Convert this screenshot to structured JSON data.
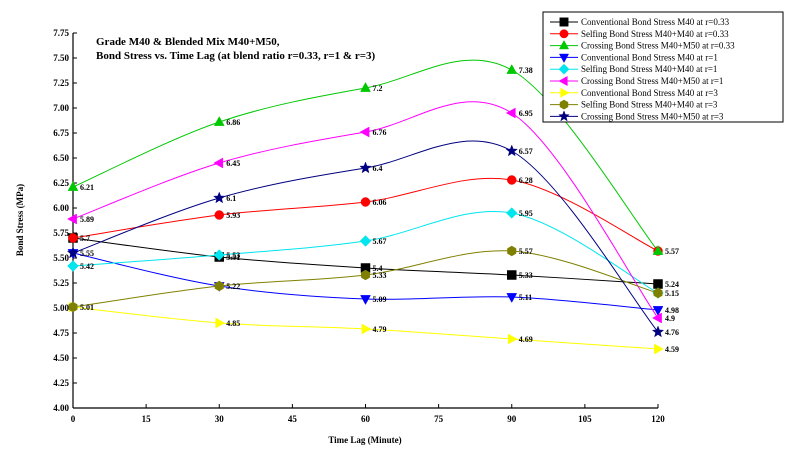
{
  "chart_data": {
    "type": "line",
    "title_lines": [
      "Grade M40 & Blended Mix M40+M50,",
      "Bond Stress vs. Time Lag (at blend ratio r=0.33, r=1 & r=3)"
    ],
    "xlabel": "Time Lag (Minute)",
    "ylabel": "Bond Stress (MPa)",
    "xlim": [
      0,
      120
    ],
    "ylim": [
      4.0,
      7.75
    ],
    "xticks": [
      "0",
      "15",
      "30",
      "45",
      "60",
      "75",
      "90",
      "105",
      "120"
    ],
    "yticks": [
      "4.00",
      "4.25",
      "4.50",
      "4.75",
      "5.00",
      "5.25",
      "5.50",
      "5.75",
      "6.00",
      "6.25",
      "6.50",
      "6.75",
      "7.00",
      "7.25",
      "7.50",
      "7.75"
    ],
    "x": [
      0,
      30,
      60,
      90,
      120
    ],
    "legend_position": "top-right",
    "grid": false,
    "series": [
      {
        "name": "Conventional Bond Stress  M40 at r=0.33",
        "values": [
          5.7,
          5.51,
          5.4,
          5.33,
          5.24
        ],
        "labels": [
          "5.7",
          "5.51",
          "5.4",
          "5.33",
          "5.24"
        ],
        "color": "#000000",
        "marker": "square"
      },
      {
        "name": "Selfing Bond Stress M40+M40 at r=0.33",
        "values": [
          5.7,
          5.93,
          6.06,
          6.28,
          5.57
        ],
        "labels": [
          "",
          "5.93",
          "6.06",
          "6.28",
          ""
        ],
        "color": "#ff0000",
        "marker": "circle"
      },
      {
        "name": "Crossing Bond Stress M40+M50 at r=0.33",
        "values": [
          6.21,
          6.86,
          7.2,
          7.38,
          5.57
        ],
        "labels": [
          "6.21",
          "6.86",
          "7.2",
          "7.38",
          "5.57"
        ],
        "color": "#00c800",
        "marker": "triangle-up"
      },
      {
        "name": "Conventional Bond Stress  M40 at r=1",
        "values": [
          5.55,
          5.22,
          5.09,
          5.11,
          4.98
        ],
        "labels": [
          "5.55",
          "",
          "5.09",
          "5.11",
          "4.98"
        ],
        "color": "#0000ff",
        "marker": "triangle-down"
      },
      {
        "name": "Selfing Bond Stress M40+M40 at  r=1",
        "values": [
          5.42,
          5.53,
          5.67,
          5.95,
          5.15
        ],
        "labels": [
          "5.42",
          "5.53",
          "5.67",
          "5.95",
          ""
        ],
        "color": "#00e5ee",
        "marker": "diamond"
      },
      {
        "name": "Crossing Bond Stress M40+M50 at r=1",
        "values": [
          5.89,
          6.45,
          6.76,
          6.95,
          4.9
        ],
        "labels": [
          "5.89",
          "6.45",
          "6.76",
          "6.95",
          "4.9"
        ],
        "color": "#ff00ff",
        "marker": "triangle-left"
      },
      {
        "name": "Conventional Bond Stress  M40  at r=3",
        "values": [
          5.01,
          4.85,
          4.79,
          4.69,
          4.59
        ],
        "labels": [
          "5.01",
          "4.85",
          "4.79",
          "4.69",
          "4.59"
        ],
        "color": "#ffff00",
        "marker": "triangle-right"
      },
      {
        "name": "Selfing Bond Stress  M40+M40  at r=3",
        "values": [
          5.01,
          5.22,
          5.33,
          5.57,
          5.15
        ],
        "labels": [
          "",
          "5.22",
          "5.33",
          "5.57",
          "5.15"
        ],
        "color": "#808000",
        "marker": "hexagon"
      },
      {
        "name": "Crossing Bond Stress M40+M50  at r=3",
        "values": [
          5.55,
          6.1,
          6.4,
          6.57,
          4.76
        ],
        "labels": [
          "",
          "6.1",
          "6.4",
          "6.57",
          "4.76"
        ],
        "color": "#000080",
        "marker": "star"
      }
    ]
  }
}
